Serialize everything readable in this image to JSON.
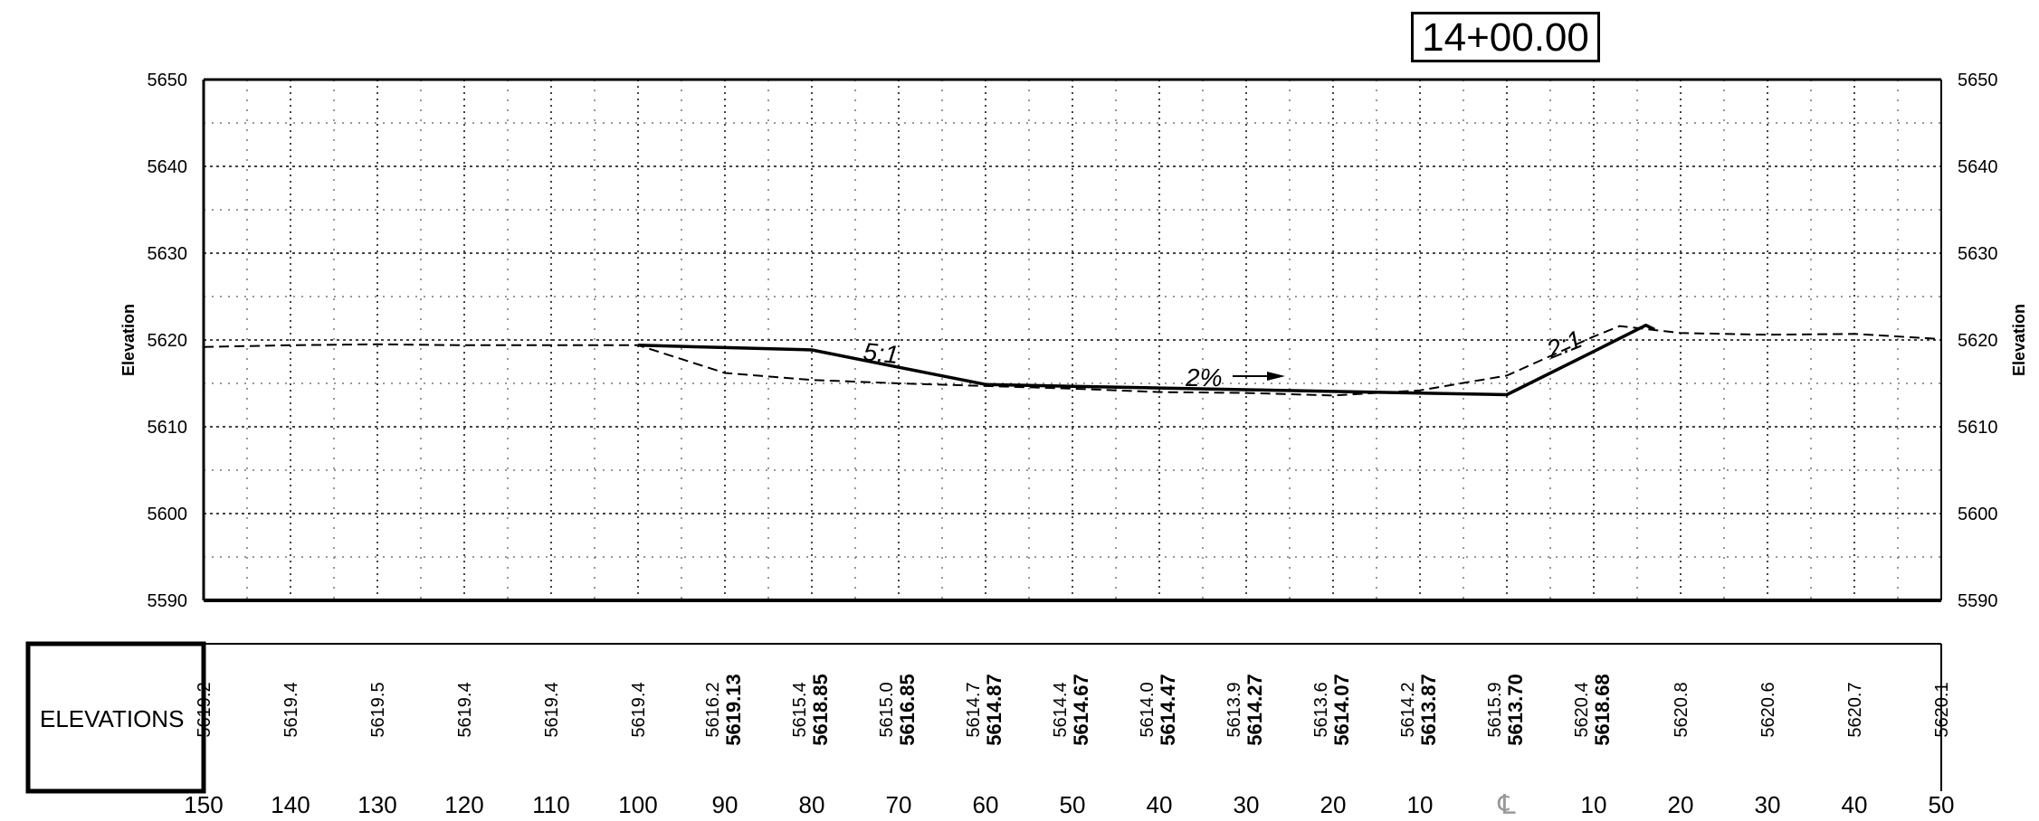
{
  "station": "14+00.00",
  "elevations_label": "ELEVATIONS",
  "y_axis_label": "Elevation",
  "centerline_symbol": "℄",
  "slope_labels": {
    "left_fill": "5:1",
    "cross_slope": "2%",
    "right_cut": "2:1"
  },
  "y_ticks": [
    "5650",
    "5640",
    "5630",
    "5620",
    "5610",
    "5600",
    "5590"
  ],
  "x_ticks": [
    "150",
    "140",
    "130",
    "120",
    "110",
    "100",
    "90",
    "80",
    "70",
    "60",
    "50",
    "40",
    "30",
    "20",
    "10",
    "",
    "10",
    "20",
    "30",
    "40",
    "50"
  ],
  "elevation_columns": [
    {
      "existing": "5619.2",
      "proposed": ""
    },
    {
      "existing": "5619.4",
      "proposed": ""
    },
    {
      "existing": "5619.5",
      "proposed": ""
    },
    {
      "existing": "5619.4",
      "proposed": ""
    },
    {
      "existing": "5619.4",
      "proposed": ""
    },
    {
      "existing": "5619.4",
      "proposed": ""
    },
    {
      "existing": "5616.2",
      "proposed": "5619.13"
    },
    {
      "existing": "5615.4",
      "proposed": "5618.85"
    },
    {
      "existing": "5615.0",
      "proposed": "5616.85"
    },
    {
      "existing": "5614.7",
      "proposed": "5614.87"
    },
    {
      "existing": "5614.4",
      "proposed": "5614.67"
    },
    {
      "existing": "5614.0",
      "proposed": "5614.47"
    },
    {
      "existing": "5613.9",
      "proposed": "5614.27"
    },
    {
      "existing": "5613.6",
      "proposed": "5614.07"
    },
    {
      "existing": "5614.2",
      "proposed": "5613.87"
    },
    {
      "existing": "5615.9",
      "proposed": "5613.70"
    },
    {
      "existing": "5620.4",
      "proposed": "5618.68"
    },
    {
      "existing": "5620.8",
      "proposed": ""
    },
    {
      "existing": "5620.6",
      "proposed": ""
    },
    {
      "existing": "5620.7",
      "proposed": ""
    },
    {
      "existing": "5620.1",
      "proposed": ""
    }
  ],
  "chart_data": {
    "type": "line",
    "title": "14+00.00",
    "xlabel": "",
    "ylabel": "Elevation",
    "xlim": [
      -150,
      50
    ],
    "ylim": [
      5590,
      5650
    ],
    "grid": true,
    "series": [
      {
        "style": "dashed",
        "points": [
          [
            -150,
            5619.2
          ],
          [
            -140,
            5619.4
          ],
          [
            -130,
            5619.5
          ],
          [
            -120,
            5619.4
          ],
          [
            -110,
            5619.4
          ],
          [
            -100,
            5619.4
          ],
          [
            -90,
            5616.2
          ],
          [
            -80,
            5615.4
          ],
          [
            -70,
            5615.0
          ],
          [
            -60,
            5614.7
          ],
          [
            -50,
            5614.4
          ],
          [
            -40,
            5614.0
          ],
          [
            -30,
            5613.9
          ],
          [
            -20,
            5613.6
          ],
          [
            -10,
            5614.2
          ],
          [
            0,
            5615.9
          ],
          [
            10,
            5620.4
          ],
          [
            13,
            5621.6
          ],
          [
            20,
            5620.8
          ],
          [
            30,
            5620.6
          ],
          [
            40,
            5620.7
          ],
          [
            50,
            5620.1
          ]
        ]
      },
      {
        "style": "solid",
        "points": [
          [
            -100,
            5619.4
          ],
          [
            -90,
            5619.13
          ],
          [
            -80,
            5618.85
          ],
          [
            -70,
            5616.85
          ],
          [
            -60,
            5614.87
          ],
          [
            -50,
            5614.67
          ],
          [
            -40,
            5614.47
          ],
          [
            -30,
            5614.27
          ],
          [
            -20,
            5614.07
          ],
          [
            -10,
            5613.87
          ],
          [
            0,
            5613.7
          ],
          [
            10,
            5618.68
          ],
          [
            16,
            5621.7
          ],
          [
            17,
            5621.2
          ]
        ]
      }
    ]
  },
  "colors": {
    "line": "#000000",
    "grid": "#555555",
    "background": "#ffffff"
  }
}
